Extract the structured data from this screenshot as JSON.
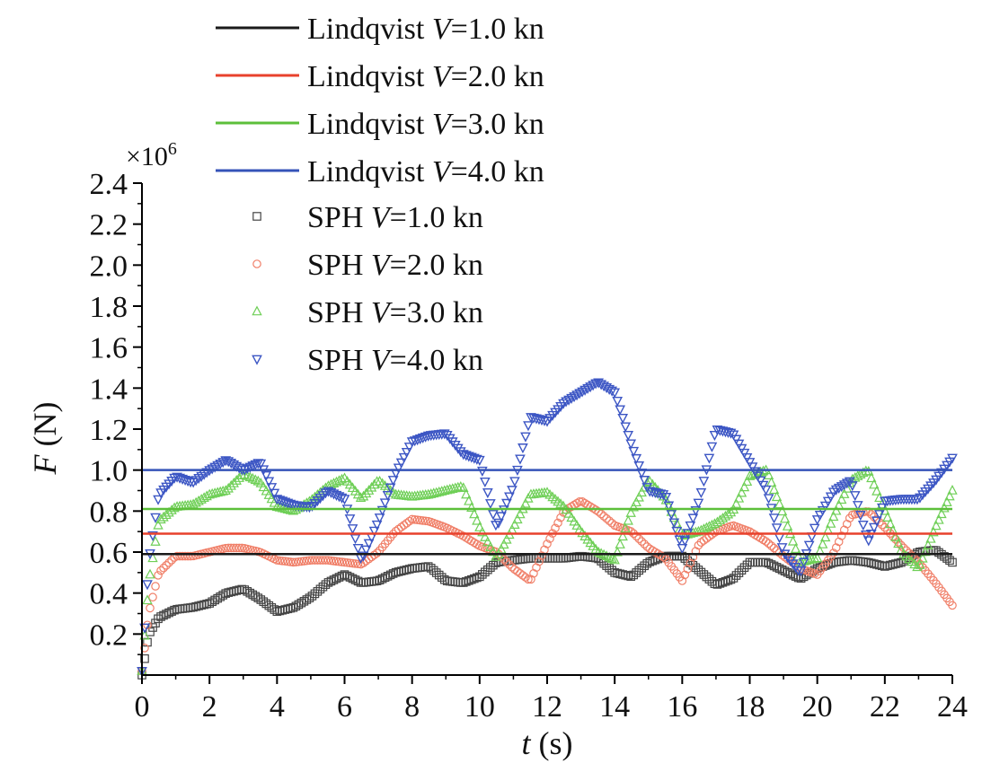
{
  "chart_data": {
    "type": "line",
    "title": "",
    "xlabel_var": "t",
    "xlabel_unit": " (s)",
    "ylabel_var": "F",
    "ylabel_unit": " (N)",
    "y_multiplier": "×10",
    "y_multiplier_exp": "6",
    "xlim": [
      0,
      24
    ],
    "ylim": [
      0,
      2.4
    ],
    "x_ticks": [
      0,
      2,
      4,
      6,
      8,
      10,
      12,
      14,
      16,
      18,
      20,
      22,
      24
    ],
    "x_tick_labels": [
      "0",
      "2",
      "4",
      "6",
      "8",
      "10",
      "12",
      "14",
      "16",
      "18",
      "20",
      "22",
      "24"
    ],
    "y_ticks": [
      0.2,
      0.4,
      0.6,
      0.8,
      1.0,
      1.2,
      1.4,
      1.6,
      1.8,
      2.0,
      2.2,
      2.4
    ],
    "y_tick_labels": [
      "0.2",
      "0.4",
      "0.6",
      "0.8",
      "1.0",
      "1.2",
      "1.4",
      "1.6",
      "1.8",
      "2.0",
      "2.2",
      "2.4"
    ],
    "legend_position": "top",
    "series": [
      {
        "name": "Lindqvist V=1.0 kn",
        "label_prefix": "Lindqvist ",
        "label_var": "V",
        "label_suffix": "=1.0 kn",
        "kind": "line",
        "color": "#1a1a1a",
        "value": 0.59
      },
      {
        "name": "Lindqvist V=2.0 kn",
        "label_prefix": "Lindqvist ",
        "label_var": "V",
        "label_suffix": "=2.0 kn",
        "kind": "line",
        "color": "#e8412c",
        "value": 0.69
      },
      {
        "name": "Lindqvist V=3.0 kn",
        "label_prefix": "Lindqvist ",
        "label_var": "V",
        "label_suffix": "=3.0 kn",
        "kind": "line",
        "color": "#5cbf3a",
        "value": 0.81
      },
      {
        "name": "Lindqvist V=4.0 kn",
        "label_prefix": "Lindqvist ",
        "label_var": "V",
        "label_suffix": "=4.0 kn",
        "kind": "line",
        "color": "#3553b8",
        "value": 1.0
      },
      {
        "name": "SPH V=1.0 kn",
        "label_prefix": "SPH ",
        "label_var": "V",
        "label_suffix": "=1.0 kn",
        "kind": "marker",
        "marker": "square",
        "color": "#444444",
        "points": [
          [
            0,
            0.0
          ],
          [
            0.2,
            0.2
          ],
          [
            0.5,
            0.28
          ],
          [
            1,
            0.32
          ],
          [
            1.5,
            0.33
          ],
          [
            2,
            0.35
          ],
          [
            2.5,
            0.4
          ],
          [
            3,
            0.42
          ],
          [
            3.5,
            0.37
          ],
          [
            4,
            0.31
          ],
          [
            4.5,
            0.33
          ],
          [
            5,
            0.38
          ],
          [
            5.5,
            0.45
          ],
          [
            6,
            0.49
          ],
          [
            6.5,
            0.45
          ],
          [
            7,
            0.46
          ],
          [
            7.5,
            0.5
          ],
          [
            8,
            0.52
          ],
          [
            8.5,
            0.53
          ],
          [
            9,
            0.46
          ],
          [
            9.5,
            0.45
          ],
          [
            10,
            0.48
          ],
          [
            10.5,
            0.55
          ],
          [
            11,
            0.56
          ],
          [
            11.5,
            0.57
          ],
          [
            12,
            0.57
          ],
          [
            12.5,
            0.57
          ],
          [
            13,
            0.58
          ],
          [
            13.5,
            0.57
          ],
          [
            14,
            0.5
          ],
          [
            14.5,
            0.48
          ],
          [
            15,
            0.55
          ],
          [
            15.5,
            0.58
          ],
          [
            16,
            0.58
          ],
          [
            16.5,
            0.51
          ],
          [
            17,
            0.44
          ],
          [
            17.5,
            0.47
          ],
          [
            18,
            0.55
          ],
          [
            18.5,
            0.55
          ],
          [
            19,
            0.51
          ],
          [
            19.5,
            0.47
          ],
          [
            20,
            0.52
          ],
          [
            20.5,
            0.55
          ],
          [
            21,
            0.56
          ],
          [
            21.5,
            0.55
          ],
          [
            22,
            0.53
          ],
          [
            22.5,
            0.55
          ],
          [
            23,
            0.6
          ],
          [
            23.5,
            0.61
          ],
          [
            24,
            0.55
          ]
        ]
      },
      {
        "name": "SPH V=2.0 kn",
        "label_prefix": "SPH ",
        "label_var": "V",
        "label_suffix": "=2.0 kn",
        "kind": "marker",
        "marker": "circle",
        "color": "#f07f68",
        "points": [
          [
            0,
            0.02
          ],
          [
            0.2,
            0.3
          ],
          [
            0.5,
            0.5
          ],
          [
            1,
            0.58
          ],
          [
            1.5,
            0.58
          ],
          [
            2,
            0.6
          ],
          [
            2.5,
            0.62
          ],
          [
            3,
            0.62
          ],
          [
            3.5,
            0.6
          ],
          [
            4,
            0.56
          ],
          [
            4.5,
            0.55
          ],
          [
            5,
            0.56
          ],
          [
            5.5,
            0.56
          ],
          [
            6,
            0.55
          ],
          [
            6.5,
            0.54
          ],
          [
            7,
            0.6
          ],
          [
            7.5,
            0.7
          ],
          [
            8,
            0.76
          ],
          [
            8.5,
            0.75
          ],
          [
            9,
            0.72
          ],
          [
            9.5,
            0.68
          ],
          [
            10,
            0.63
          ],
          [
            10.5,
            0.6
          ],
          [
            11,
            0.52
          ],
          [
            11.5,
            0.46
          ],
          [
            12,
            0.64
          ],
          [
            12.5,
            0.8
          ],
          [
            13,
            0.85
          ],
          [
            13.5,
            0.8
          ],
          [
            14,
            0.73
          ],
          [
            14.5,
            0.7
          ],
          [
            15,
            0.62
          ],
          [
            15.5,
            0.57
          ],
          [
            16,
            0.46
          ],
          [
            16.5,
            0.64
          ],
          [
            17,
            0.7
          ],
          [
            17.5,
            0.73
          ],
          [
            18,
            0.7
          ],
          [
            18.5,
            0.65
          ],
          [
            19,
            0.58
          ],
          [
            19.5,
            0.52
          ],
          [
            20,
            0.49
          ],
          [
            20.5,
            0.6
          ],
          [
            21,
            0.78
          ],
          [
            21.5,
            0.8
          ],
          [
            22,
            0.72
          ],
          [
            22.5,
            0.63
          ],
          [
            23,
            0.55
          ],
          [
            23.5,
            0.45
          ],
          [
            24,
            0.34
          ]
        ]
      },
      {
        "name": "SPH V=3.0 kn",
        "label_prefix": "SPH ",
        "label_var": "V",
        "label_suffix": "=3.0 kn",
        "kind": "marker",
        "marker": "triangle",
        "color": "#6fcf57",
        "points": [
          [
            0,
            0.02
          ],
          [
            0.2,
            0.45
          ],
          [
            0.5,
            0.75
          ],
          [
            1,
            0.82
          ],
          [
            1.5,
            0.83
          ],
          [
            2,
            0.88
          ],
          [
            2.5,
            0.9
          ],
          [
            3,
            0.98
          ],
          [
            3.5,
            0.94
          ],
          [
            4,
            0.82
          ],
          [
            4.5,
            0.8
          ],
          [
            5,
            0.85
          ],
          [
            5.5,
            0.92
          ],
          [
            6,
            0.96
          ],
          [
            6.5,
            0.86
          ],
          [
            7,
            0.95
          ],
          [
            7.5,
            0.88
          ],
          [
            8,
            0.87
          ],
          [
            8.5,
            0.88
          ],
          [
            9,
            0.9
          ],
          [
            9.5,
            0.92
          ],
          [
            10,
            0.72
          ],
          [
            10.5,
            0.57
          ],
          [
            11,
            0.72
          ],
          [
            11.5,
            0.88
          ],
          [
            12,
            0.89
          ],
          [
            12.5,
            0.82
          ],
          [
            13,
            0.7
          ],
          [
            13.5,
            0.6
          ],
          [
            14,
            0.56
          ],
          [
            14.5,
            0.8
          ],
          [
            15,
            0.95
          ],
          [
            15.5,
            0.86
          ],
          [
            16,
            0.68
          ],
          [
            16.5,
            0.7
          ],
          [
            17,
            0.74
          ],
          [
            17.5,
            0.8
          ],
          [
            18,
            0.97
          ],
          [
            18.5,
            1.0
          ],
          [
            19,
            0.78
          ],
          [
            19.5,
            0.55
          ],
          [
            20,
            0.57
          ],
          [
            20.5,
            0.78
          ],
          [
            21,
            0.95
          ],
          [
            21.5,
            1.0
          ],
          [
            22,
            0.8
          ],
          [
            22.5,
            0.6
          ],
          [
            23,
            0.52
          ],
          [
            23.5,
            0.72
          ],
          [
            24,
            0.9
          ]
        ]
      },
      {
        "name": "SPH V=4.0 kn",
        "label_prefix": "SPH ",
        "label_var": "V",
        "label_suffix": "=4.0 kn",
        "kind": "marker",
        "marker": "tri-down",
        "color": "#3c56c4",
        "points": [
          [
            0,
            0.02
          ],
          [
            0.2,
            0.55
          ],
          [
            0.5,
            0.88
          ],
          [
            1,
            0.97
          ],
          [
            1.5,
            0.94
          ],
          [
            2,
            1.0
          ],
          [
            2.5,
            1.05
          ],
          [
            3,
            1.0
          ],
          [
            3.5,
            1.04
          ],
          [
            4,
            0.86
          ],
          [
            4.5,
            0.83
          ],
          [
            5,
            0.82
          ],
          [
            5.5,
            0.9
          ],
          [
            6,
            0.86
          ],
          [
            6.5,
            0.56
          ],
          [
            7,
            0.75
          ],
          [
            7.5,
            0.98
          ],
          [
            8,
            1.14
          ],
          [
            8.5,
            1.17
          ],
          [
            9,
            1.18
          ],
          [
            9.5,
            1.08
          ],
          [
            10,
            1.05
          ],
          [
            10.5,
            0.72
          ],
          [
            11,
            0.92
          ],
          [
            11.5,
            1.26
          ],
          [
            12,
            1.24
          ],
          [
            12.5,
            1.33
          ],
          [
            13,
            1.38
          ],
          [
            13.5,
            1.43
          ],
          [
            14,
            1.38
          ],
          [
            14.5,
            1.12
          ],
          [
            15,
            0.9
          ],
          [
            15.5,
            0.88
          ],
          [
            16,
            0.62
          ],
          [
            16.5,
            0.85
          ],
          [
            17,
            1.2
          ],
          [
            17.5,
            1.18
          ],
          [
            18,
            1.04
          ],
          [
            18.5,
            0.9
          ],
          [
            19,
            0.6
          ],
          [
            19.5,
            0.5
          ],
          [
            20,
            0.76
          ],
          [
            20.5,
            0.9
          ],
          [
            21,
            0.95
          ],
          [
            21.5,
            0.65
          ],
          [
            22,
            0.85
          ],
          [
            22.5,
            0.86
          ],
          [
            23,
            0.86
          ],
          [
            23.5,
            0.95
          ],
          [
            24,
            1.06
          ]
        ]
      }
    ]
  }
}
